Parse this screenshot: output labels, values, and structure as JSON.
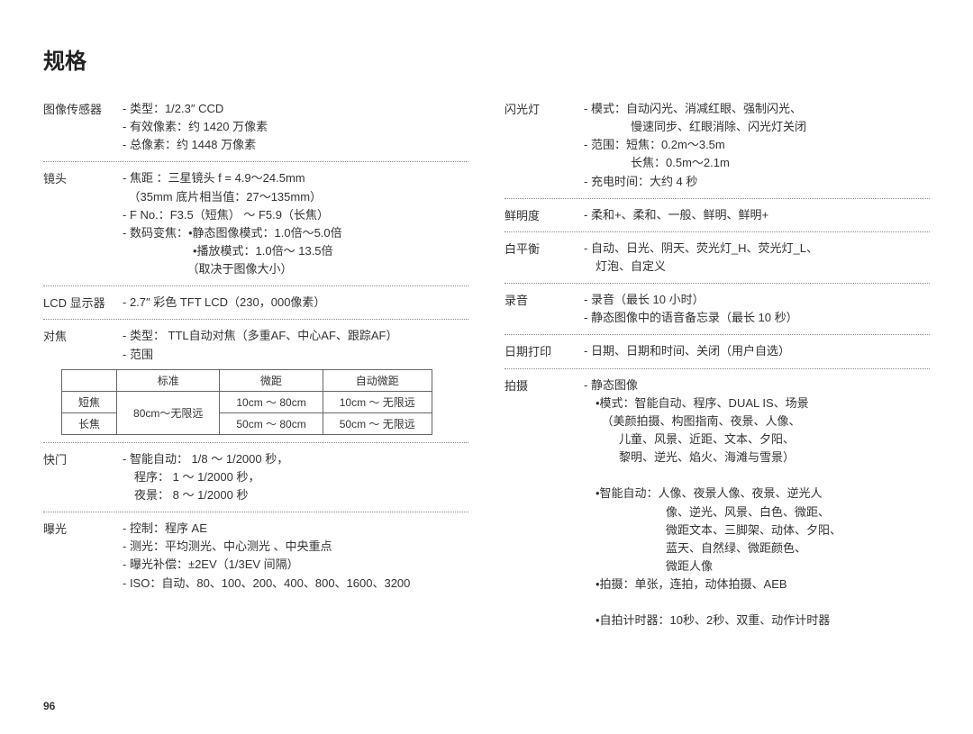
{
  "page_title": "规格",
  "page_number": "96",
  "left": [
    {
      "label": "图像传感器",
      "items": [
        "- 类型：1/2.3″ CCD",
        "- 有效像素：约 1420 万像素",
        "- 总像素：约 1448 万像素"
      ]
    },
    {
      "label": "镜头",
      "items": [
        "- 焦距 ：三星镜头 f = 4.9～24.5mm",
        "　（35mm 底片相当值：27～135mm）",
        "- F No.：F3.5（短焦） ～ F5.9（长焦）",
        "- 数码变焦：•静态图像模式：1.0倍～5.0倍",
        "　　　　　　•播放模式：1.0倍～ 13.5倍",
        "　　　　　　（取决于图像大小）"
      ]
    },
    {
      "label": "LCD 显示器",
      "items": [
        "- 2.7″ 彩色 TFT LCD（230，000像素）"
      ]
    },
    {
      "label": "对焦",
      "items": [
        "- 类型： TTL自动对焦（多重AF、中心AF、跟踪AF）",
        "- 范围"
      ]
    },
    {
      "label": "快门",
      "items": [
        "- 智能自动： 1/8 ～ 1/2000 秒，",
        "　程序： 1 ～ 1/2000 秒，",
        "　夜景： 8 ～ 1/2000 秒"
      ]
    },
    {
      "label": "曝光",
      "items": [
        "- 控制：程序 AE",
        "- 测光：平均测光、中心测光 、中央重点",
        "- 曝光补偿：±2EV（1/3EV 间隔）",
        "- ISO：自动、80、100、200、400、800、1600、3200"
      ]
    }
  ],
  "focus_table": {
    "headers": [
      "",
      "标准",
      "微距",
      "自动微距"
    ],
    "rows": [
      {
        "label": "短焦",
        "std_rowspan": true,
        "std": "80cm～无限远",
        "macro": "10cm ～ 80cm",
        "auto": "10cm ～ 无限远"
      },
      {
        "label": "长焦",
        "macro": "50cm ～ 80cm",
        "auto": "50cm ～ 无限远"
      }
    ]
  },
  "right": [
    {
      "label": "闪光灯",
      "items": [
        "- 模式：自动闪光、消减红眼、强制闪光、",
        "　　　　慢速同步、红眼消除、闪光灯关闭",
        "- 范围：短焦：0.2m～3.5m",
        "　　　　长焦：0.5m～2.1m",
        "- 充电时间：大约 4 秒"
      ]
    },
    {
      "label": "鲜明度",
      "items": [
        "- 柔和+、柔和、一般、鲜明、鲜明+"
      ]
    },
    {
      "label": "白平衡",
      "items": [
        "- 自动、日光、阴天、荧光灯_H、荧光灯_L、",
        "　灯泡、自定义"
      ]
    },
    {
      "label": "录音",
      "items": [
        "- 录音（最长 10 小时）",
        "- 静态图像中的语音备忘录（最长 10 秒）"
      ]
    },
    {
      "label": "日期打印",
      "items": [
        "- 日期、日期和时间、关闭（用户自选）"
      ]
    },
    {
      "label": "拍摄",
      "items": [
        "- 静态图像",
        "　•模式：智能自动、程序、DUAL IS、场景",
        "　　（美颜拍摄、构图指南、夜景、人像、",
        "　　　儿童、风景、近距、文本、夕阳、",
        "　　　黎明、逆光、焰火、海滩与雪景）",
        "　",
        "　•智能自动：人像、夜景人像、夜景、逆光人",
        "　　　　　　　像、逆光、风景、白色、微距、",
        "　　　　　　　微距文本、三脚架、动体、夕阳、",
        "　　　　　　　蓝天、自然绿、微距颜色、",
        "　　　　　　　微距人像",
        "　•拍摄：单张，连拍，动体拍摄、AEB",
        "　",
        "　•自拍计时器：10秒、2秒、双重、动作计时器"
      ]
    }
  ]
}
